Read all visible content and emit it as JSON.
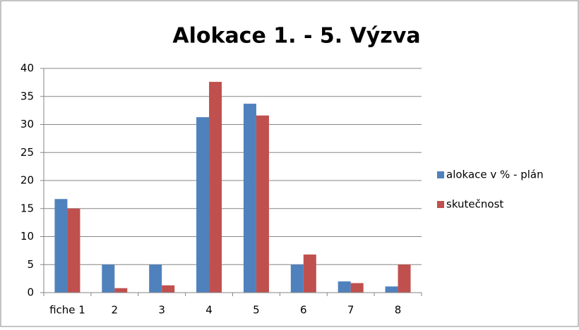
{
  "chart_data": {
    "type": "bar",
    "title": "Alokace  1. - 5. Výzva",
    "categories": [
      "fiche 1",
      "2",
      "3",
      "4",
      "5",
      "6",
      "7",
      "8"
    ],
    "series": [
      {
        "name": "alokace v % - plán",
        "color": "#4f81bd",
        "values": [
          16.7,
          5,
          5,
          31.3,
          33.7,
          5,
          2,
          1.1
        ]
      },
      {
        "name": "skutečnost",
        "color": "#c0504d",
        "values": [
          15,
          0.8,
          1.3,
          37.6,
          31.6,
          6.8,
          1.7,
          5
        ]
      }
    ],
    "ylim": [
      0,
      40
    ],
    "yticks": [
      0,
      5,
      10,
      15,
      20,
      25,
      30,
      35,
      40
    ],
    "grid": true,
    "legend": "right"
  }
}
